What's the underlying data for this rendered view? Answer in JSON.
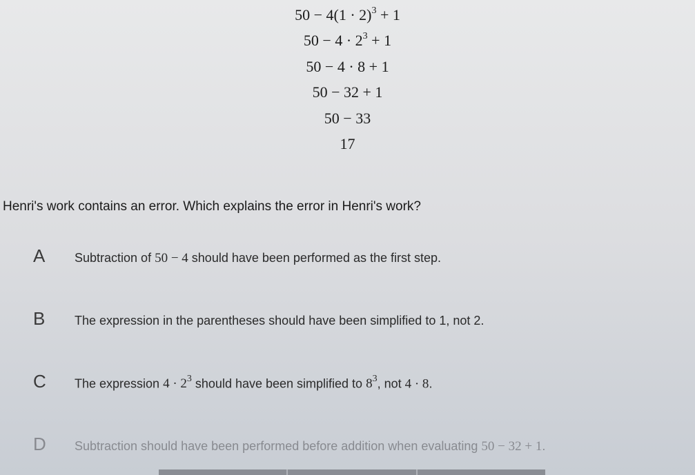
{
  "math_work": {
    "lines": [
      {
        "html": "50 − 4(1 · 2)<span class='sup'>3</span> + 1"
      },
      {
        "html": "50 − 4 · 2<span class='sup'>3</span> + 1"
      },
      {
        "html": "50 − 4 · 8 + 1"
      },
      {
        "html": "50 − 32 + 1"
      },
      {
        "html": "50 − 33"
      },
      {
        "html": "17"
      }
    ]
  },
  "question": "Henri's work contains an error. Which explains the error in Henri's work?",
  "options": [
    {
      "letter": "A",
      "html": "Subtraction of <span class='math-inline'>50 − 4</span> should have been performed as the first step.",
      "faded": false
    },
    {
      "letter": "B",
      "html": "The expression in the parentheses should have been simplified to 1, not 2.",
      "faded": false
    },
    {
      "letter": "C",
      "html": "The expression <span class='math-inline'>4 · 2<span class='sup'>3</span></span> should have been simplified to <span class='math-inline'>8<span class='sup'>3</span></span>, not <span class='math-inline'>4 · 8</span>.",
      "faded": false
    },
    {
      "letter": "D",
      "html": "Subtraction should have been performed before addition when evaluating <span class='math-inline'>50 − 32 + 1</span>.",
      "faded": true
    }
  ],
  "colors": {
    "bg_top": "#e8e9ea",
    "bg_bottom": "#c8cdd4",
    "text_primary": "#1a1a1a",
    "text_secondary": "#2a2a2a",
    "text_faded": "#888a90",
    "letter_color": "#3a3a3a"
  }
}
